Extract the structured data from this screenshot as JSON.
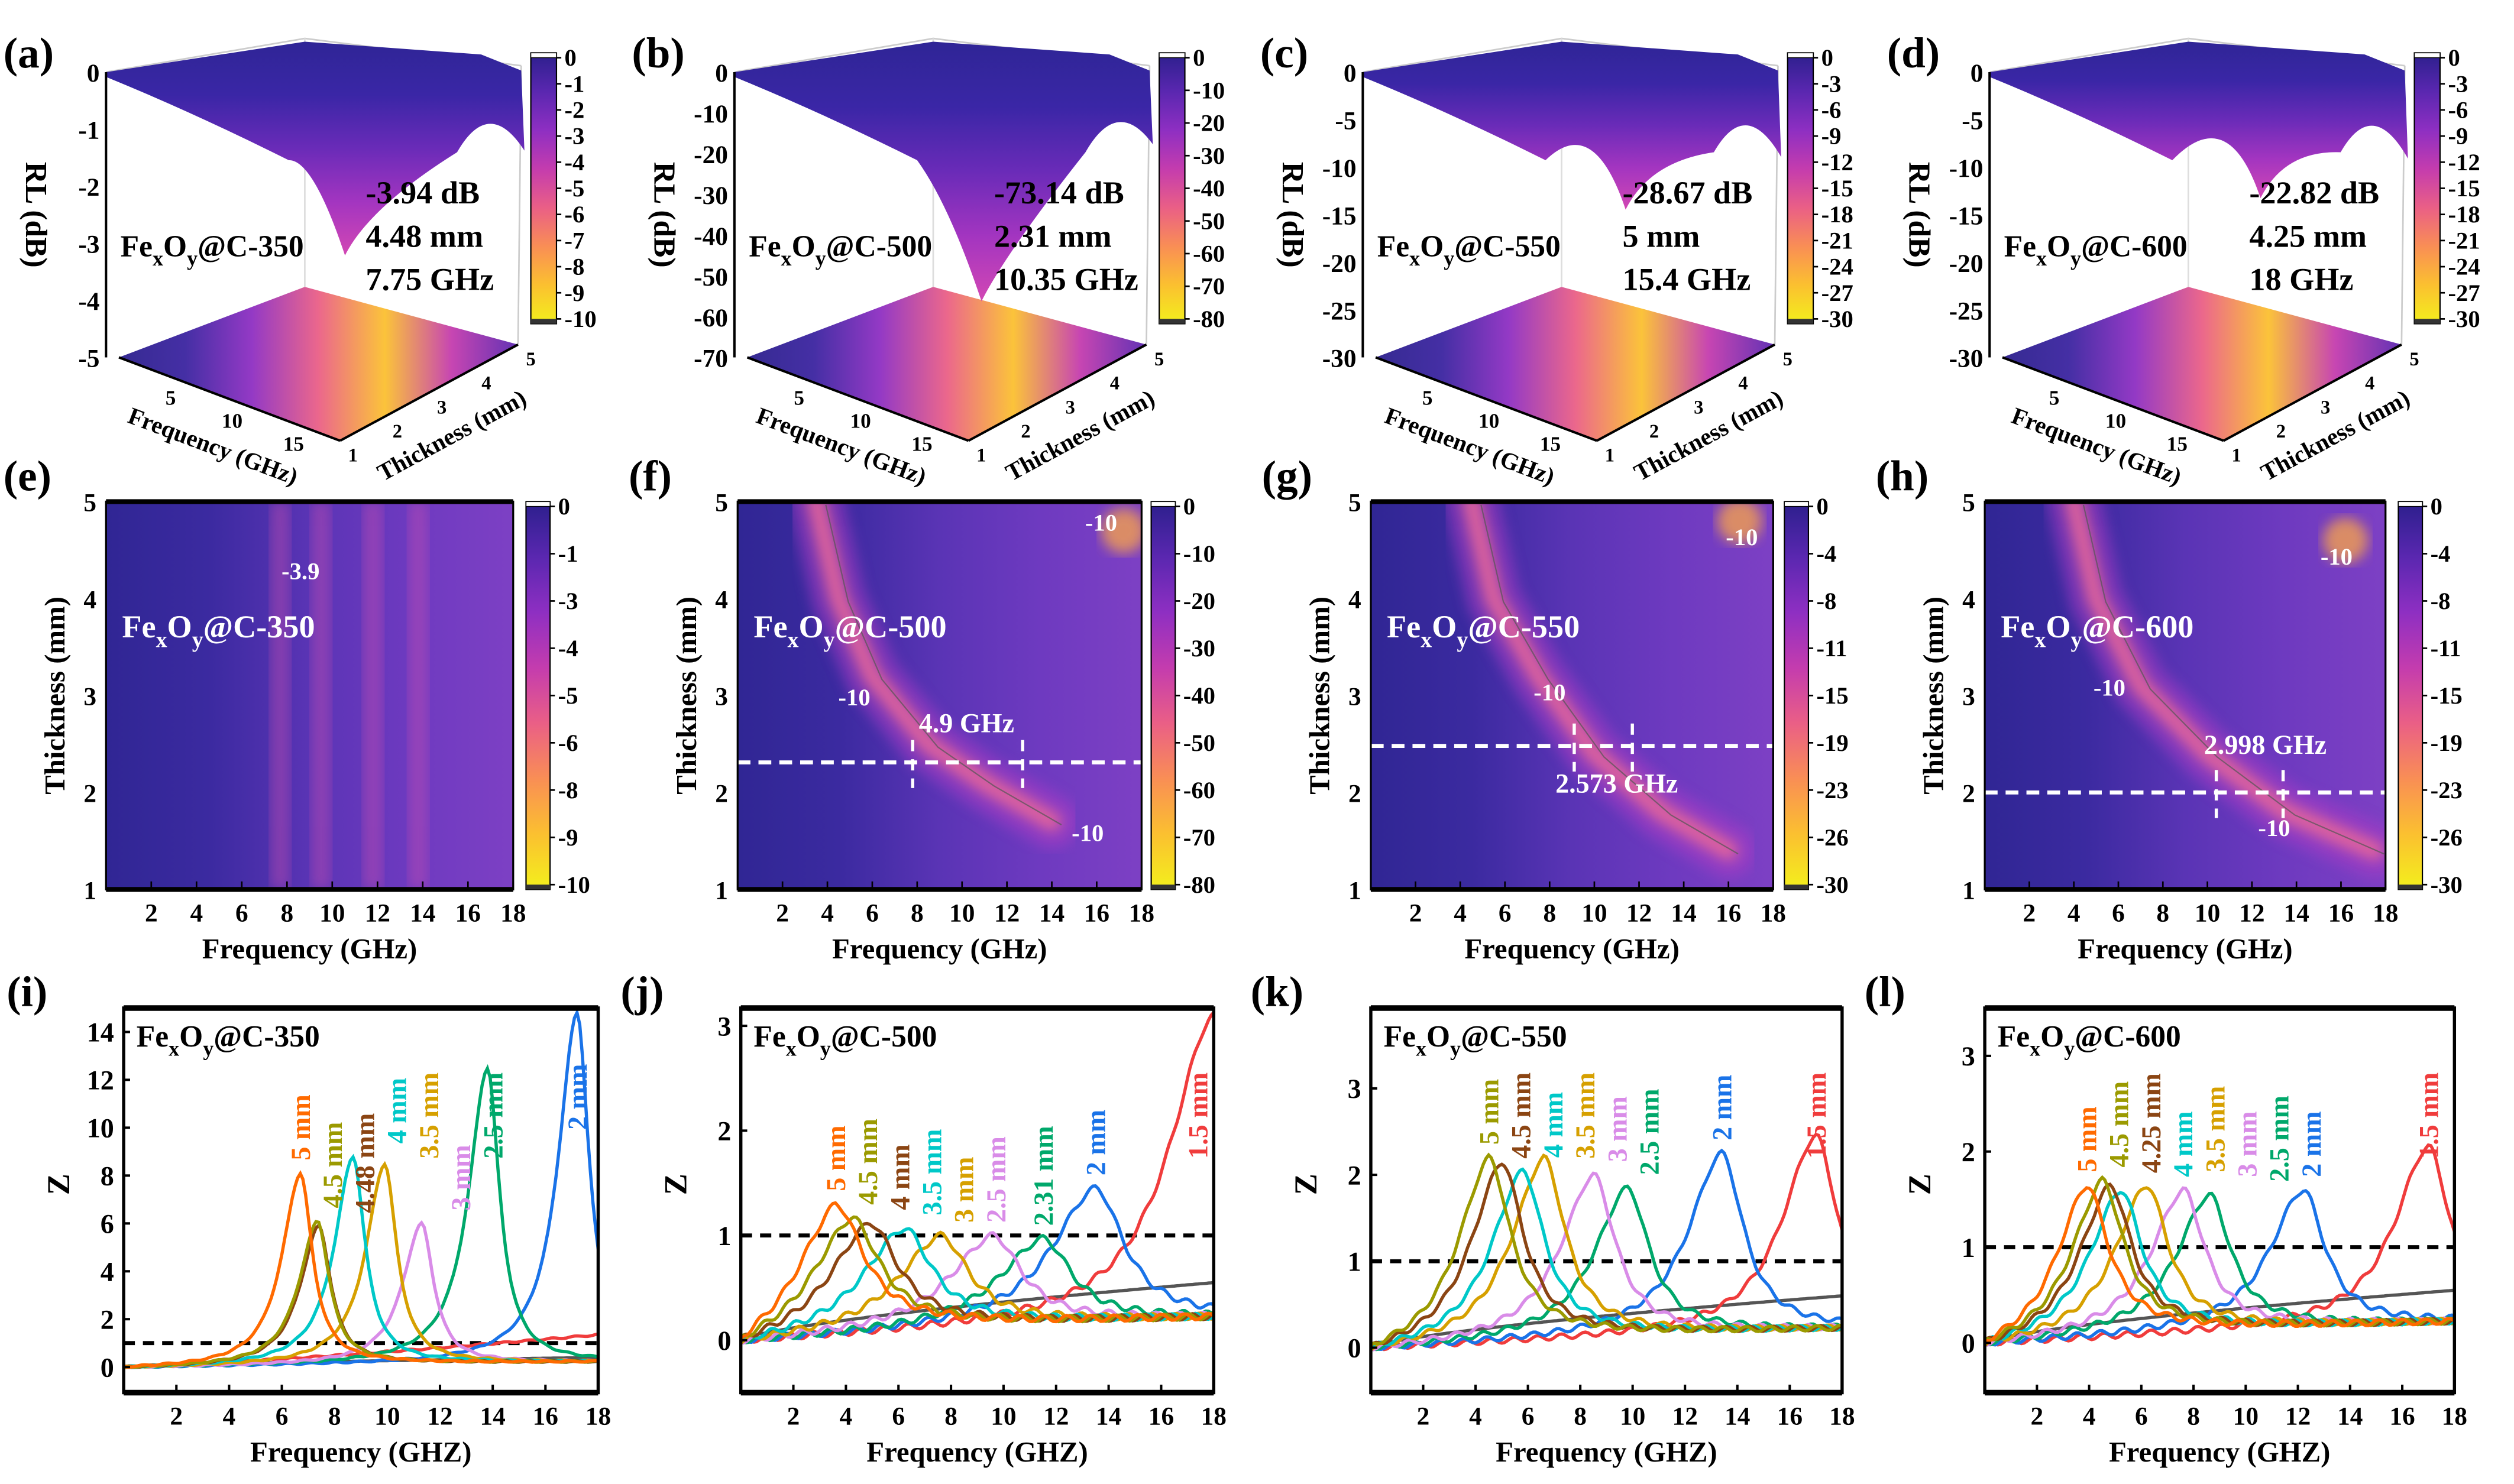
{
  "sample_formula": {
    "base1": "Fe",
    "sub1": "x",
    "base2": "O",
    "sub2": "y"
  },
  "colors": {
    "colormap": [
      "#2b1f8c",
      "#5a27b0",
      "#8e2fc2",
      "#c43cae",
      "#ea5f86",
      "#f98e55",
      "#fbc030",
      "#f3f01c"
    ],
    "series": {
      "5 mm": "#ff6a00",
      "4.5 mm": "#9b9a00",
      "4.48 mm": "#8b4513",
      "4.25 mm": "#8b4513",
      "4 mm": "#00c8c8",
      "3.5 mm": "#d6a000",
      "3 mm": "#d98ce8",
      "2.5 mm": "#00a86b",
      "2.31 mm": "#00a86b",
      "2 mm": "#1a73e8",
      "1.5 mm": "#f03c3c",
      "baseline": "#555555"
    }
  },
  "chart_data": [
    {
      "type": "surface3d",
      "label": "(a)",
      "sample_suffix": "@C-350",
      "zlabel": "RL (dB)",
      "xlabel": "Frequency (GHz)",
      "ylabel": "Thickness (mm)",
      "zticks": [
        "0",
        "-1",
        "-2",
        "-3",
        "-4",
        "-5"
      ],
      "xticks": [
        "5",
        "10",
        "15"
      ],
      "yticks": [
        "1",
        "2",
        "3",
        "4",
        "5"
      ],
      "colorbar_ticks": [
        "0",
        "-1",
        "-2",
        "-3",
        "-4",
        "-5",
        "-6",
        "-7",
        "-8",
        "-9",
        "-10"
      ],
      "annotation": [
        "-3.94 dB",
        "4.48 mm",
        "7.75 GHz"
      ],
      "min_rl_db": -3.94,
      "thickness_mm": 4.48,
      "frequency_ghz": 7.75,
      "depth": 0.8
    },
    {
      "type": "surface3d",
      "label": "(b)",
      "sample_suffix": "@C-500",
      "zlabel": "RL (dB)",
      "xlabel": "Frequency (GHz)",
      "ylabel": "Thickness (mm)",
      "zticks": [
        "0",
        "-10",
        "-20",
        "-30",
        "-40",
        "-50",
        "-60",
        "-70"
      ],
      "xticks": [
        "5",
        "10",
        "15"
      ],
      "yticks": [
        "1",
        "2",
        "3",
        "4",
        "5"
      ],
      "colorbar_ticks": [
        "0",
        "-10",
        "-20",
        "-30",
        "-40",
        "-50",
        "-60",
        "-70",
        "-80"
      ],
      "annotation": [
        "-73.14 dB",
        "2.31 mm",
        "10.35 GHz"
      ],
      "min_rl_db": -73.14,
      "thickness_mm": 2.31,
      "frequency_ghz": 10.35,
      "depth": 1.0
    },
    {
      "type": "surface3d",
      "label": "(c)",
      "sample_suffix": "@C-550",
      "zlabel": "RL (dB)",
      "xlabel": "Frequency (GHz)",
      "ylabel": "Thickness (mm)",
      "zticks": [
        "0",
        "-5",
        "-10",
        "-15",
        "-20",
        "-25",
        "-30"
      ],
      "xticks": [
        "5",
        "10",
        "15"
      ],
      "yticks": [
        "1",
        "2",
        "3",
        "4",
        "5"
      ],
      "colorbar_ticks": [
        "0",
        "-3",
        "-6",
        "-9",
        "-12",
        "-15",
        "-18",
        "-21",
        "-24",
        "-27",
        "-30"
      ],
      "annotation": [
        "-28.67 dB",
        "5 mm",
        "15.4 GHz"
      ],
      "min_rl_db": -28.67,
      "thickness_mm": 5,
      "frequency_ghz": 15.4,
      "depth": 0.6
    },
    {
      "type": "surface3d",
      "label": "(d)",
      "sample_suffix": "@C-600",
      "zlabel": "RL (dB)",
      "xlabel": "Frequency (GHz)",
      "ylabel": "Thickness (mm)",
      "zticks": [
        "0",
        "-5",
        "-10",
        "-15",
        "-20",
        "-25",
        "-30"
      ],
      "xticks": [
        "5",
        "10",
        "15"
      ],
      "yticks": [
        "1",
        "2",
        "3",
        "4",
        "5"
      ],
      "colorbar_ticks": [
        "0",
        "-3",
        "-6",
        "-9",
        "-12",
        "-15",
        "-18",
        "-21",
        "-24",
        "-27",
        "-30"
      ],
      "annotation": [
        "-22.82 dB",
        "4.25 mm",
        "18 GHz"
      ],
      "min_rl_db": -22.82,
      "thickness_mm": 4.25,
      "frequency_ghz": 18,
      "depth": 0.55
    },
    {
      "type": "heatmap",
      "label": "(e)",
      "sample_suffix": "@C-350",
      "xlabel": "Frequency (GHz)",
      "ylabel": "Thickness (mm)",
      "xlim": [
        0,
        18
      ],
      "ylim": [
        1,
        5
      ],
      "xticks": [
        2,
        4,
        6,
        8,
        10,
        12,
        14,
        16,
        18
      ],
      "yticks": [
        1,
        2,
        3,
        4,
        5
      ],
      "colorbar_ticks": [
        "0",
        "-1",
        "-3",
        "-4",
        "-5",
        "-6",
        "-8",
        "-9",
        "-10"
      ],
      "contour_labels": [
        {
          "text": "-3.9",
          "f": 8.6,
          "t": 4.2
        }
      ],
      "ridge": [],
      "stripes": [
        7.7,
        9.5,
        11.8,
        13.8
      ]
    },
    {
      "type": "heatmap",
      "label": "(f)",
      "sample_suffix": "@C-500",
      "xlabel": "Frequency (GHz)",
      "ylabel": "Thickness (mm)",
      "xlim": [
        0,
        18
      ],
      "ylim": [
        1,
        5
      ],
      "xticks": [
        2,
        4,
        6,
        8,
        10,
        12,
        14,
        16,
        18
      ],
      "yticks": [
        1,
        2,
        3,
        4,
        5
      ],
      "colorbar_ticks": [
        "0",
        "-10",
        "-20",
        "-30",
        "-40",
        "-50",
        "-60",
        "-70",
        "-80"
      ],
      "contour_labels": [
        {
          "text": "-10",
          "f": 16.2,
          "t": 4.7
        },
        {
          "text": "-10",
          "f": 5.2,
          "t": 2.9
        },
        {
          "text": "-10",
          "f": 15.6,
          "t": 1.5
        }
      ],
      "ridge": [
        [
          3.5,
          5
        ],
        [
          4.5,
          4
        ],
        [
          6,
          3.2
        ],
        [
          8.5,
          2.5
        ],
        [
          11,
          2.1
        ],
        [
          14,
          1.7
        ]
      ],
      "corner": [
        17.2,
        4.7
      ],
      "dashed_thickness": 2.31,
      "band": [
        7.8,
        12.7
      ],
      "band_label": "4.9 GHz",
      "band_label_pos": [
        10.2,
        2.62
      ]
    },
    {
      "type": "heatmap",
      "label": "(g)",
      "sample_suffix": "@C-550",
      "xlabel": "Frequency (GHz)",
      "ylabel": "Thickness (mm)",
      "xlim": [
        0,
        18
      ],
      "ylim": [
        1,
        5
      ],
      "xticks": [
        2,
        4,
        6,
        8,
        10,
        12,
        14,
        16,
        18
      ],
      "yticks": [
        1,
        2,
        3,
        4,
        5
      ],
      "colorbar_ticks": [
        "0",
        "-4",
        "-8",
        "-11",
        "-15",
        "-19",
        "-23",
        "-26",
        "-30"
      ],
      "contour_labels": [
        {
          "text": "-10",
          "f": 16.6,
          "t": 4.55
        },
        {
          "text": "-10",
          "f": 8.0,
          "t": 2.95
        }
      ],
      "ridge": [
        [
          4.5,
          5
        ],
        [
          5.5,
          4
        ],
        [
          7.5,
          3.2
        ],
        [
          10,
          2.4
        ],
        [
          13,
          1.8
        ],
        [
          16,
          1.4
        ]
      ],
      "corner": [
        16.5,
        4.8
      ],
      "dashed_thickness": 2.48,
      "band": [
        9.1,
        11.7
      ],
      "band_label": "2.573 GHz",
      "band_label_pos": [
        11,
        2.0
      ]
    },
    {
      "type": "heatmap",
      "label": "(h)",
      "sample_suffix": "@C-600",
      "xlabel": "Frequency (GHz)",
      "ylabel": "Thickness (mm)",
      "xlim": [
        0,
        18
      ],
      "ylim": [
        1,
        5
      ],
      "xticks": [
        2,
        4,
        6,
        8,
        10,
        12,
        14,
        16,
        18
      ],
      "yticks": [
        1,
        2,
        3,
        4,
        5
      ],
      "colorbar_ticks": [
        "0",
        "-4",
        "-8",
        "-11",
        "-15",
        "-19",
        "-23",
        "-26",
        "-30"
      ],
      "contour_labels": [
        {
          "text": "-10",
          "f": 15.8,
          "t": 4.35
        },
        {
          "text": "-10",
          "f": 5.6,
          "t": 3.0
        },
        {
          "text": "-10",
          "f": 13,
          "t": 1.55
        }
      ],
      "ridge": [
        [
          4,
          5
        ],
        [
          5,
          4
        ],
        [
          7,
          3.1
        ],
        [
          10,
          2.4
        ],
        [
          13.5,
          1.8
        ],
        [
          17.5,
          1.4
        ]
      ],
      "corner": [
        16.2,
        4.6
      ],
      "dashed_thickness": 2.0,
      "band": [
        10.4,
        13.4
      ],
      "band_label": "2.998 GHz",
      "band_label_pos": [
        12.6,
        2.4
      ]
    },
    {
      "type": "line",
      "label": "(i)",
      "sample_suffix": "@C-350",
      "xlabel": "Frequency (GHZ)",
      "ylabel": "Z",
      "xlim": [
        0,
        18
      ],
      "ylim": [
        -1.07,
        15
      ],
      "xticks": [
        2,
        4,
        6,
        8,
        10,
        12,
        14,
        16,
        18
      ],
      "yticks": [
        0,
        2,
        4,
        6,
        8,
        10,
        12,
        14
      ],
      "reference_line": 1,
      "peak_width_ghz": 0.55,
      "series": [
        {
          "name": "baseline",
          "peak_freq": null,
          "peak_z": null,
          "end_z": 0.4
        },
        {
          "name": "1.5 mm",
          "label": "",
          "peak_freq": 22,
          "peak_z": 2.5,
          "end_z": 1.2
        },
        {
          "name": "2 mm",
          "label": "2 mm",
          "peak_freq": 17.2,
          "peak_z": 14.8
        },
        {
          "name": "2.5 mm",
          "label": "2.5 mm",
          "peak_freq": 13.8,
          "peak_z": 12.5
        },
        {
          "name": "3 mm",
          "label": "3 mm",
          "peak_freq": 11.3,
          "peak_z": 6.0
        },
        {
          "name": "3.5 mm",
          "label": "3.5 mm",
          "peak_freq": 9.9,
          "peak_z": 8.5
        },
        {
          "name": "4 mm",
          "label": "4 mm",
          "peak_freq": 8.7,
          "peak_z": 8.8
        },
        {
          "name": "4.48 mm",
          "label": "4.48 mm",
          "peak_freq": 7.4,
          "peak_z": 5.9
        },
        {
          "name": "4.5 mm",
          "label": "4.5 mm",
          "peak_freq": 7.35,
          "peak_z": 6.1
        },
        {
          "name": "5 mm",
          "label": "5 mm",
          "peak_freq": 6.7,
          "peak_z": 8.1
        }
      ]
    },
    {
      "type": "line",
      "label": "(j)",
      "sample_suffix": "@C-500",
      "xlabel": "Frequency (GHZ)",
      "ylabel": "Z",
      "xlim": [
        0,
        18
      ],
      "ylim": [
        -0.5,
        3.17
      ],
      "xticks": [
        2,
        4,
        6,
        8,
        10,
        12,
        14,
        16,
        18
      ],
      "yticks": [
        0,
        1,
        2,
        3
      ],
      "reference_line": 1,
      "peak_width_ghz": 1.3,
      "series": [
        {
          "name": "baseline",
          "peak_freq": null,
          "peak_z": null,
          "end_z": 0.55
        },
        {
          "name": "1.5 mm",
          "label": "1.5 mm",
          "peak_freq": 18,
          "peak_z": 3.1
        },
        {
          "name": "2 mm",
          "label": "2 mm",
          "peak_freq": 13.5,
          "peak_z": 1.45
        },
        {
          "name": "2.31 mm",
          "label": "2.31 mm",
          "peak_freq": 11.5,
          "peak_z": 0.97
        },
        {
          "name": "3 mm",
          "label": "2.5 mm",
          "peak_freq": 9.6,
          "peak_z": 1.0
        },
        {
          "name": "3.5 mm",
          "label": "3 mm",
          "peak_freq": 7.6,
          "peak_z": 1.0
        },
        {
          "name": "4 mm",
          "label": "3.5 mm",
          "peak_freq": 6.2,
          "peak_z": 1.07
        },
        {
          "name": "4.48 mm",
          "label": "4 mm",
          "peak_freq": 4.9,
          "peak_z": 1.12
        },
        {
          "name": "4.5 mm",
          "label": "4.5 mm",
          "peak_freq": 4.2,
          "peak_z": 1.17
        },
        {
          "name": "5 mm",
          "label": "5 mm",
          "peak_freq": 3.6,
          "peak_z": 1.3
        }
      ]
    },
    {
      "type": "line",
      "label": "(k)",
      "sample_suffix": "@C-550",
      "xlabel": "Frequency (GHZ)",
      "ylabel": "Z",
      "xlim": [
        0,
        18
      ],
      "ylim": [
        -0.52,
        3.93
      ],
      "xticks": [
        2,
        4,
        6,
        8,
        10,
        12,
        14,
        16,
        18
      ],
      "yticks": [
        0,
        1,
        2,
        3
      ],
      "reference_line": 1,
      "peak_width_ghz": 1.0,
      "series": [
        {
          "name": "baseline",
          "peak_freq": null,
          "peak_z": null,
          "end_z": 0.6
        },
        {
          "name": "1.5 mm",
          "label": "1.5 mm",
          "peak_freq": 17,
          "peak_z": 2.45
        },
        {
          "name": "2 mm",
          "label": "2 mm",
          "peak_freq": 13.4,
          "peak_z": 2.25
        },
        {
          "name": "2.5 mm",
          "label": "2.5 mm",
          "peak_freq": 9.8,
          "peak_z": 1.85
        },
        {
          "name": "3 mm",
          "label": "3 mm",
          "peak_freq": 8.5,
          "peak_z": 2.0
        },
        {
          "name": "3.5 mm",
          "label": "3.5 mm",
          "peak_freq": 6.6,
          "peak_z": 2.2
        },
        {
          "name": "4 mm",
          "label": "4 mm",
          "peak_freq": 5.8,
          "peak_z": 2.05
        },
        {
          "name": "4.48 mm",
          "label": "4.5 mm",
          "peak_freq": 5.0,
          "peak_z": 2.15
        },
        {
          "name": "4.5 mm",
          "label": "5 mm",
          "peak_freq": 4.5,
          "peak_z": 2.2
        }
      ]
    },
    {
      "type": "line",
      "label": "(l)",
      "sample_suffix": "@C-600",
      "xlabel": "Frequency (GHZ)",
      "ylabel": "Z",
      "xlim": [
        0,
        18
      ],
      "ylim": [
        -0.52,
        3.5
      ],
      "xticks": [
        2,
        4,
        6,
        8,
        10,
        12,
        14,
        16,
        18
      ],
      "yticks": [
        0,
        1,
        2,
        3
      ],
      "reference_line": 1,
      "peak_width_ghz": 1.0,
      "series": [
        {
          "name": "baseline",
          "peak_freq": null,
          "peak_z": null,
          "end_z": 0.55
        },
        {
          "name": "1.5 mm",
          "label": "1.5 mm",
          "peak_freq": 17,
          "peak_z": 2.05
        },
        {
          "name": "2 mm",
          "label": "2 mm",
          "peak_freq": 12.2,
          "peak_z": 1.6
        },
        {
          "name": "2.5 mm",
          "label": "2.5 mm",
          "peak_freq": 8.6,
          "peak_z": 1.55
        },
        {
          "name": "3 mm",
          "label": "3 mm",
          "peak_freq": 7.6,
          "peak_z": 1.6
        },
        {
          "name": "3.5 mm",
          "label": "3.5 mm",
          "peak_freq": 6.2,
          "peak_z": 1.65
        },
        {
          "name": "4 mm",
          "label": "4 mm",
          "peak_freq": 5.2,
          "peak_z": 1.6
        },
        {
          "name": "4.25 mm",
          "label": "4.25 mm",
          "peak_freq": 4.8,
          "peak_z": 1.65
        },
        {
          "name": "4.5 mm",
          "label": "4.5 mm",
          "peak_freq": 4.5,
          "peak_z": 1.7
        },
        {
          "name": "5 mm",
          "label": "5 mm",
          "peak_freq": 3.9,
          "peak_z": 1.65
        }
      ]
    }
  ]
}
